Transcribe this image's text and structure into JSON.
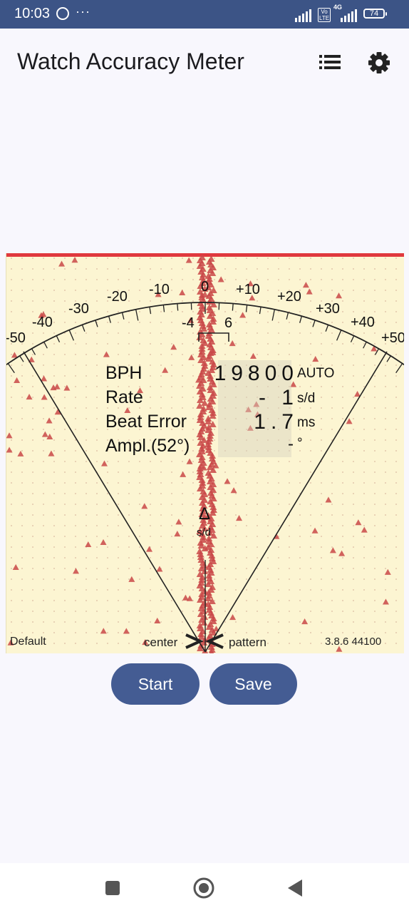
{
  "status_bar": {
    "time": "10:03",
    "more": "···",
    "network": "4G",
    "volte": "Vo LTE",
    "battery": "74"
  },
  "app_title": "Watch Accuracy Meter",
  "icons": {
    "list": "list-icon",
    "settings": "gear-icon"
  },
  "colors": {
    "accent": "#445c93",
    "status_bar": "#3c5486",
    "meter_bg": "#fcf5d2",
    "marker": "#c94848",
    "top_line": "#e0393e"
  },
  "scale": {
    "outer_labels": [
      "-50",
      "-40",
      "-30",
      "-20",
      "-10",
      "0",
      "+10",
      "+20",
      "+30",
      "+40",
      "+50"
    ],
    "inner_labels": [
      "-4",
      "6"
    ]
  },
  "readout": {
    "bph_label": "BPH",
    "bph_value": "19800",
    "bph_unit": "AUTO",
    "rate_label": "Rate",
    "rate_value": "- 1",
    "rate_unit": "s/d",
    "beat_label": "Beat Error",
    "beat_value": "1.7",
    "beat_unit": "ms",
    "ampl_label": "Ampl.(52°)",
    "ampl_value": "-",
    "ampl_unit": "°"
  },
  "needle_label": {
    "delta": "Δ",
    "unit": "s/d"
  },
  "footer": {
    "profile": "Default",
    "center": "center",
    "pattern": "pattern",
    "version": "3.8.6 44100"
  },
  "buttons": {
    "start": "Start",
    "save": "Save"
  }
}
